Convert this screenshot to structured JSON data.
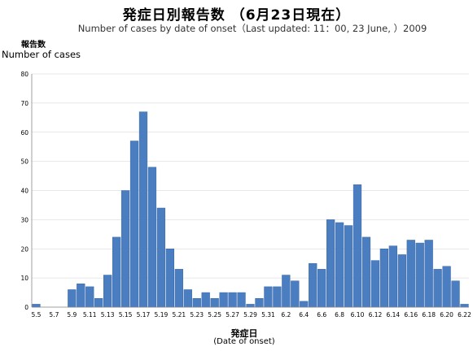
{
  "header": {
    "title": "発症日別報告数 （6月23日現在）",
    "subtitle": "Number of cases by date of onset（Last updated: 11：00, 23 June, ）2009"
  },
  "chart_data": {
    "type": "bar",
    "title": "発症日別報告数 （6月23日現在）",
    "subtitle": "Number of cases by date of onset（Last updated: 11：00, 23 June, ）2009",
    "ylabel_jp": "報告数",
    "ylabel": "Number of cases",
    "xlabel_jp": "発症日",
    "xlabel": "(Date of onset)",
    "ylim": [
      0,
      80
    ],
    "yticks": [
      0,
      10,
      20,
      30,
      40,
      50,
      60,
      70,
      80
    ],
    "grid": "horizontal",
    "bar_color": "#4a7ec0",
    "categories": [
      "5.5",
      "5.6",
      "5.7",
      "5.8",
      "5.9",
      "5.10",
      "5.11",
      "5.12",
      "5.13",
      "5.14",
      "5.15",
      "5.16",
      "5.17",
      "5.18",
      "5.19",
      "5.20",
      "5.21",
      "5.22",
      "5.23",
      "5.24",
      "5.25",
      "5.26",
      "5.27",
      "5.28",
      "5.29",
      "5.30",
      "5.31",
      "6.1",
      "6.2",
      "6.3",
      "6.4",
      "6.5",
      "6.6",
      "6.7",
      "6.8",
      "6.9",
      "6.10",
      "6.11",
      "6.12",
      "6.13",
      "6.14",
      "6.15",
      "6.16",
      "6.17",
      "6.18",
      "6.19",
      "6.20",
      "6.21",
      "6.22"
    ],
    "x_tick_labels": [
      "5.5",
      "5.7",
      "5.9",
      "5.11",
      "5.13",
      "5.15",
      "5.17",
      "5.19",
      "5.21",
      "5.23",
      "5.25",
      "5.27",
      "5.29",
      "5.31",
      "6.2",
      "6.4",
      "6.6",
      "6.8",
      "6.10",
      "6.12",
      "6.14",
      "6.16",
      "6.18",
      "6.20",
      "6.22"
    ],
    "values": [
      1,
      0,
      0,
      0,
      6,
      8,
      7,
      3,
      11,
      24,
      40,
      57,
      67,
      48,
      34,
      20,
      13,
      6,
      3,
      5,
      3,
      5,
      5,
      5,
      1,
      3,
      7,
      7,
      11,
      9,
      2,
      15,
      13,
      30,
      29,
      28,
      42,
      24,
      16,
      20,
      21,
      18,
      23,
      22,
      23,
      13,
      14,
      9,
      1
    ]
  }
}
